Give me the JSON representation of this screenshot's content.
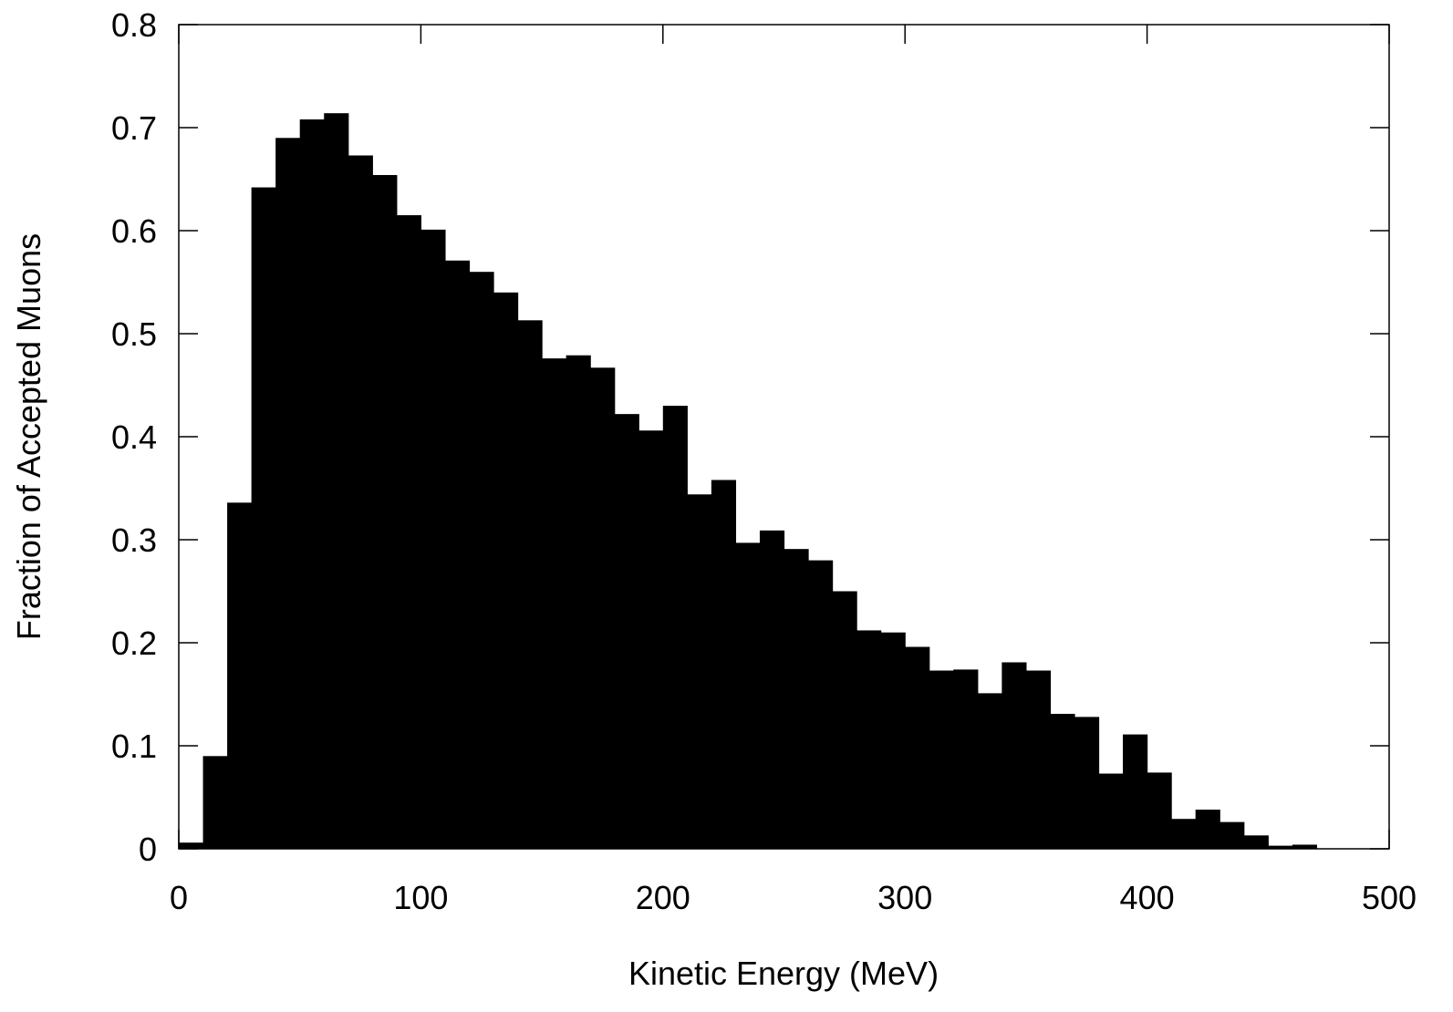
{
  "chart_data": {
    "type": "bar",
    "title": "",
    "xlabel": "Kinetic Energy (MeV)",
    "ylabel": "Fraction of Accepted Muons",
    "xlim": [
      0,
      500
    ],
    "ylim": [
      0,
      0.8
    ],
    "x_ticks": [
      0,
      100,
      200,
      300,
      400,
      500
    ],
    "y_ticks": [
      0,
      0.1,
      0.2,
      0.3,
      0.4,
      0.5,
      0.6,
      0.7,
      0.8
    ],
    "x_tick_labels": [
      "0",
      "100",
      "200",
      "300",
      "400",
      "500"
    ],
    "y_tick_labels": [
      "0",
      "0.1",
      "0.2",
      "0.3",
      "0.4",
      "0.5",
      "0.6",
      "0.7",
      "0.8"
    ],
    "bin_width": 10,
    "bin_starts": [
      0,
      10,
      20,
      30,
      40,
      50,
      60,
      70,
      80,
      90,
      100,
      110,
      120,
      130,
      140,
      150,
      160,
      170,
      180,
      190,
      200,
      210,
      220,
      230,
      240,
      250,
      260,
      270,
      280,
      290,
      300,
      310,
      320,
      330,
      340,
      350,
      360,
      370,
      380,
      390,
      400,
      410,
      420,
      430,
      440,
      450,
      460
    ],
    "values": [
      0.006,
      0.09,
      0.336,
      0.642,
      0.69,
      0.708,
      0.714,
      0.673,
      0.654,
      0.615,
      0.601,
      0.571,
      0.56,
      0.54,
      0.513,
      0.476,
      0.479,
      0.467,
      0.422,
      0.406,
      0.43,
      0.344,
      0.358,
      0.297,
      0.309,
      0.291,
      0.28,
      0.25,
      0.212,
      0.21,
      0.196,
      0.173,
      0.174,
      0.151,
      0.181,
      0.173,
      0.131,
      0.128,
      0.073,
      0.111,
      0.074,
      0.029,
      0.038,
      0.026,
      0.013,
      0.003,
      0.004
    ],
    "grid": false,
    "bar_color": "#000000"
  }
}
